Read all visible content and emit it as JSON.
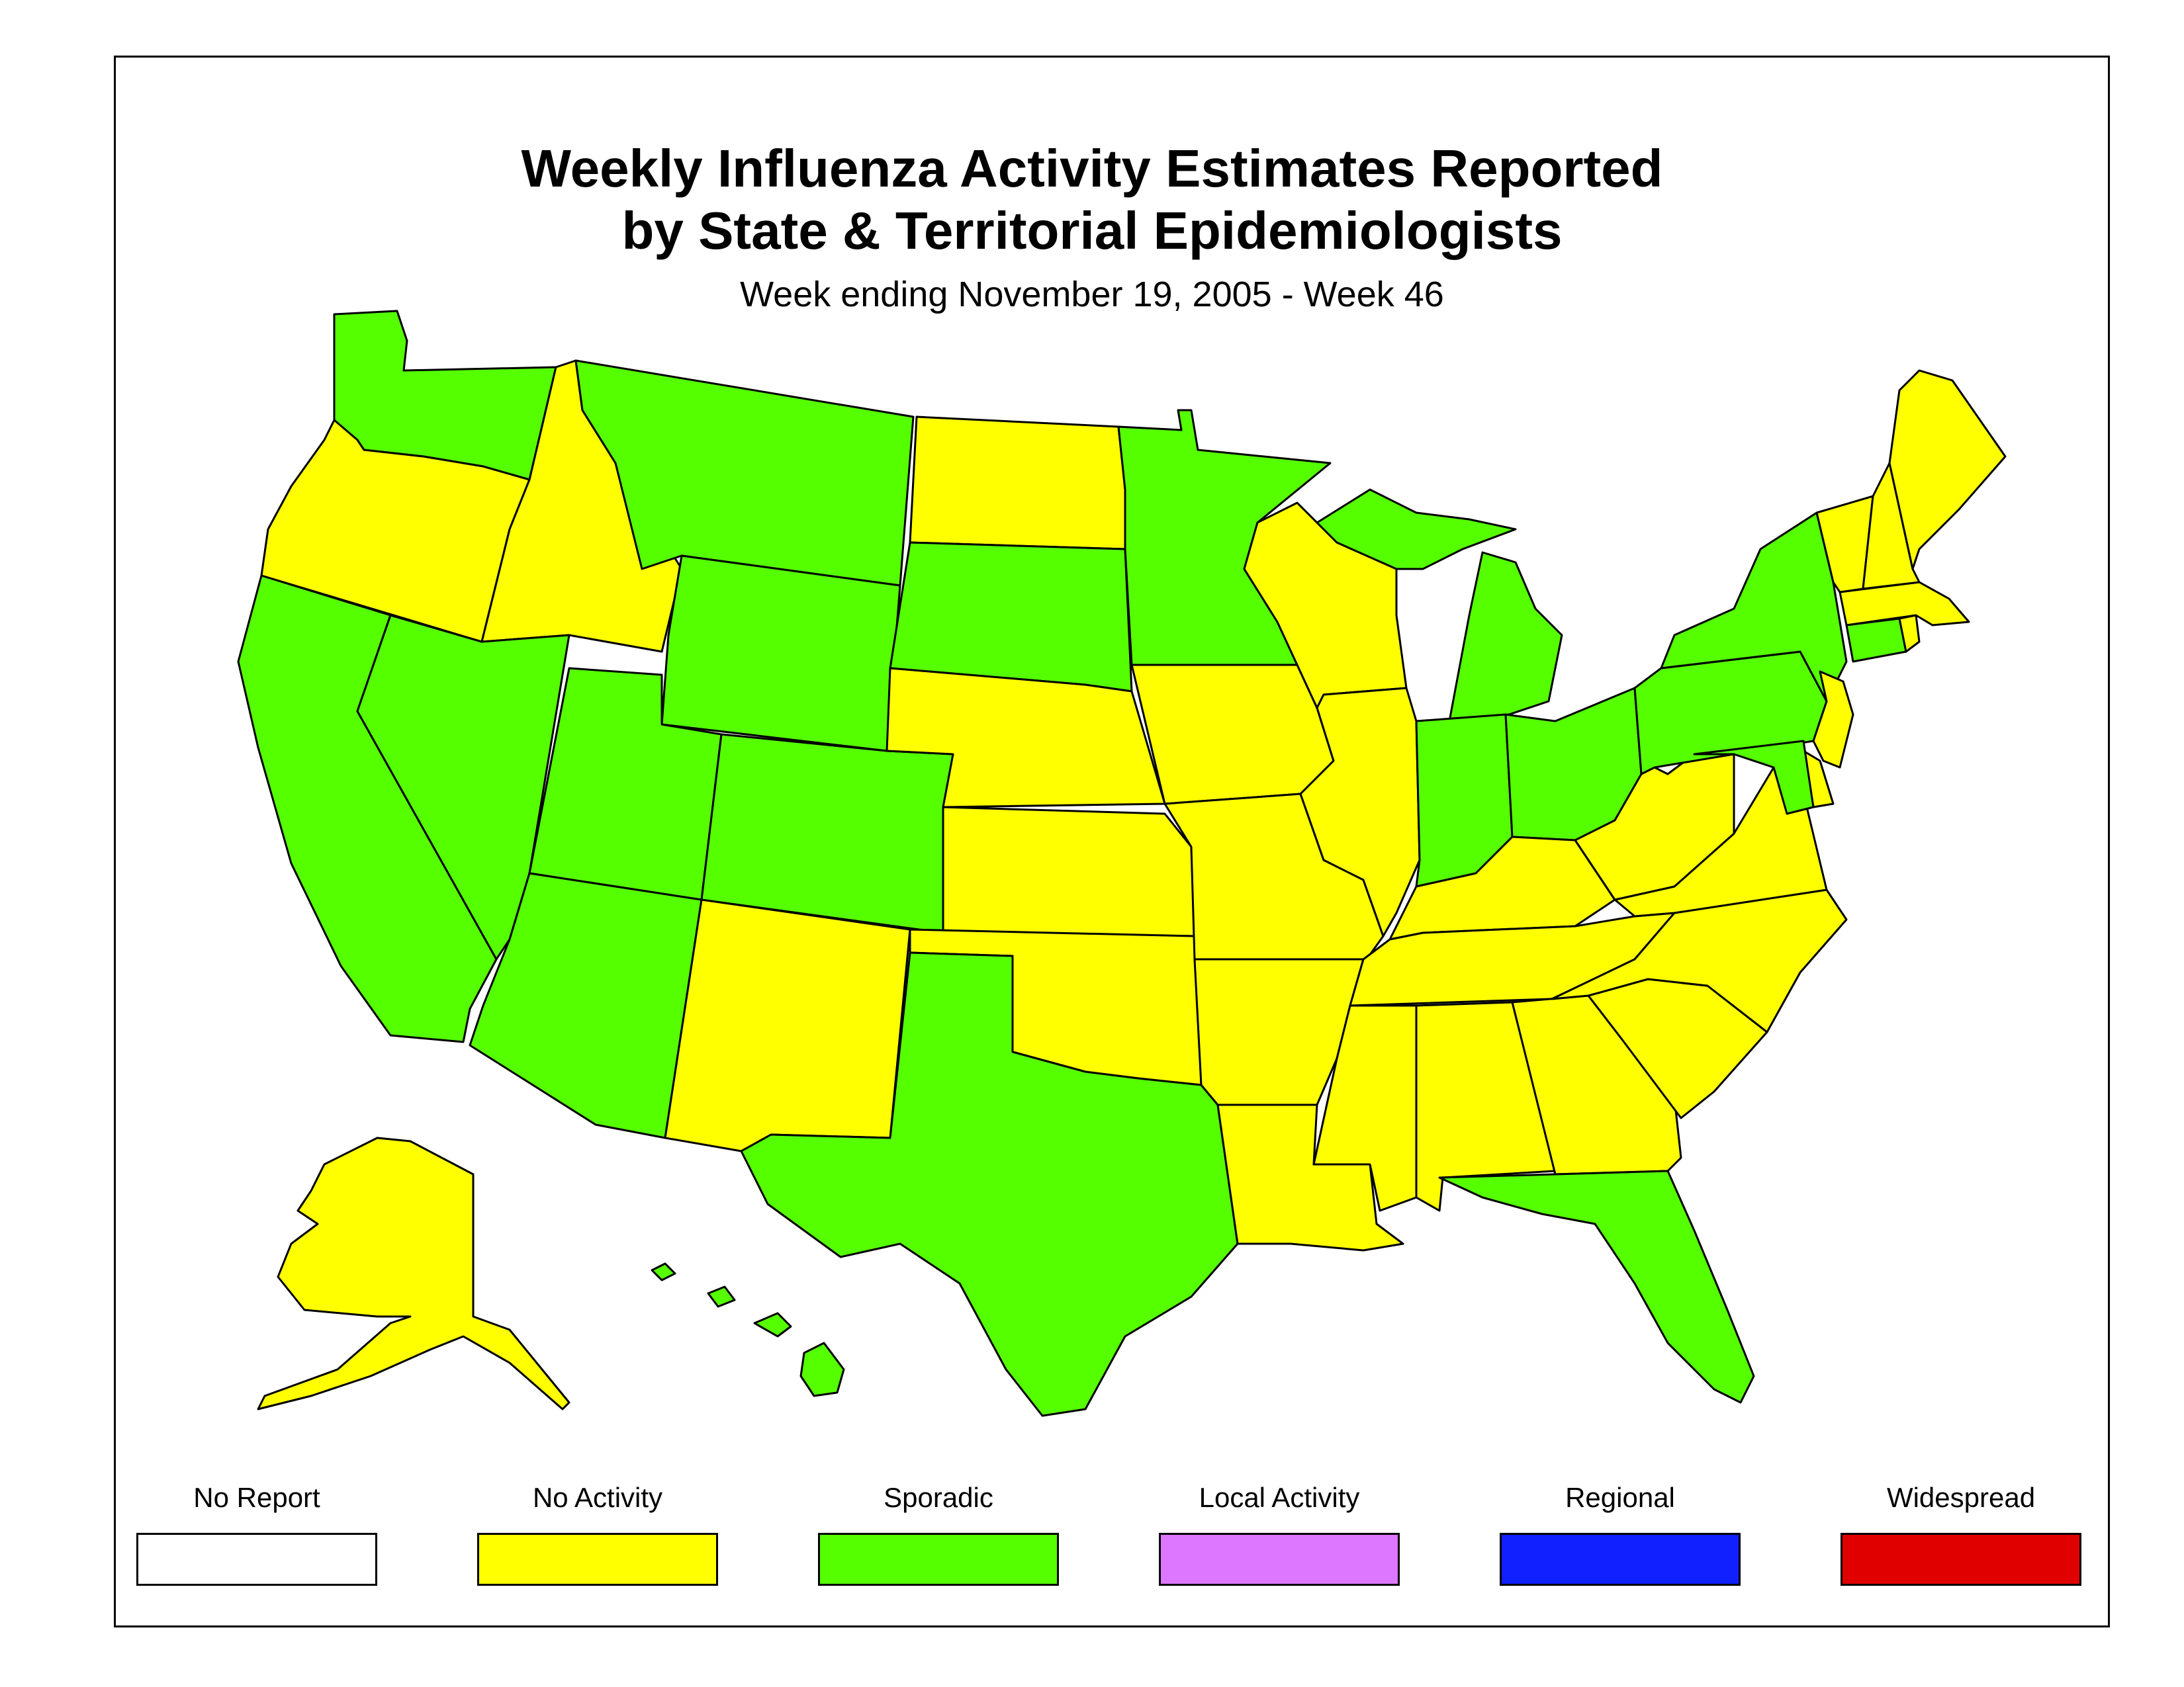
{
  "title": {
    "line1": "Weekly Influenza Activity Estimates Reported",
    "line2": "by State & Territorial Epidemiologists",
    "subtitle": "Week ending November 19, 2005 - Week 46"
  },
  "legend": [
    {
      "label": "No Report",
      "color": "#ffffff"
    },
    {
      "label": "No Activity",
      "color": "#ffff00"
    },
    {
      "label": "Sporadic",
      "color": "#55ff00"
    },
    {
      "label": "Local Activity",
      "color": "#dd77ff"
    },
    {
      "label": "Regional",
      "color": "#1020ff"
    },
    {
      "label": "Widespread",
      "color": "#e00000"
    }
  ],
  "activity_colors": {
    "no_activity": "#ffff00",
    "sporadic": "#55ff00"
  },
  "states": {
    "WA": "sporadic",
    "OR": "no_activity",
    "CA": "sporadic",
    "ID": "no_activity",
    "NV": "sporadic",
    "MT": "sporadic",
    "WY": "sporadic",
    "UT": "sporadic",
    "AZ": "sporadic",
    "CO": "sporadic",
    "NM": "no_activity",
    "ND": "no_activity",
    "SD": "sporadic",
    "NE": "no_activity",
    "KS": "no_activity",
    "OK": "no_activity",
    "TX": "sporadic",
    "MN": "sporadic",
    "IA": "no_activity",
    "MO": "no_activity",
    "AR": "no_activity",
    "LA": "no_activity",
    "WI": "no_activity",
    "IL": "no_activity",
    "MI": "sporadic",
    "IN": "sporadic",
    "OH": "sporadic",
    "KY": "no_activity",
    "TN": "no_activity",
    "MS": "no_activity",
    "AL": "no_activity",
    "GA": "no_activity",
    "FL": "sporadic",
    "SC": "no_activity",
    "NC": "no_activity",
    "VA": "no_activity",
    "WV": "no_activity",
    "PA": "sporadic",
    "NY": "sporadic",
    "VT": "no_activity",
    "NH": "no_activity",
    "ME": "no_activity",
    "MA": "no_activity",
    "RI": "no_activity",
    "CT": "sporadic",
    "NJ": "no_activity",
    "DE": "no_activity",
    "MD": "sporadic",
    "AK": "no_activity",
    "HI": "sporadic"
  }
}
